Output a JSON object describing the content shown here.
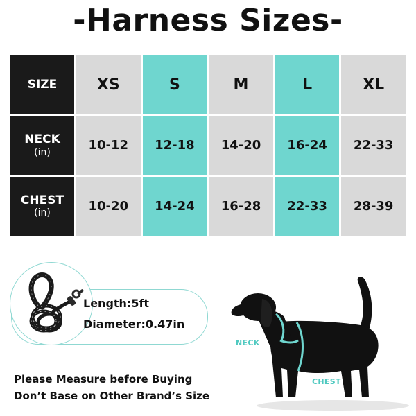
{
  "title": "-Harness Sizes-",
  "table": {
    "header": {
      "label": "SIZE",
      "sizes": [
        "XS",
        "S",
        "M",
        "L",
        "XL"
      ]
    },
    "rows": [
      {
        "label": "NECK",
        "unit": "(in)",
        "values": [
          "10-12",
          "12-18",
          "14-20",
          "16-24",
          "22-33"
        ]
      },
      {
        "label": "CHEST",
        "unit": "(in)",
        "values": [
          "10-20",
          "14-24",
          "16-28",
          "22-33",
          "28-39"
        ]
      }
    ],
    "colors": {
      "header": "#1a1a1a",
      "gray": "#d9d9d9",
      "teal": "#6fd6cf"
    }
  },
  "leash": {
    "length": "Length:5ft",
    "diameter": "Diameter:0.47in",
    "icon": "rope-leash-icon"
  },
  "note": {
    "line1": "Please Measure before Buying",
    "line2": "Don’t Base on Other Brand’s Size"
  },
  "dog": {
    "neck_label": "NECK",
    "chest_label": "CHEST",
    "icon": "dog-silhouette-icon"
  }
}
